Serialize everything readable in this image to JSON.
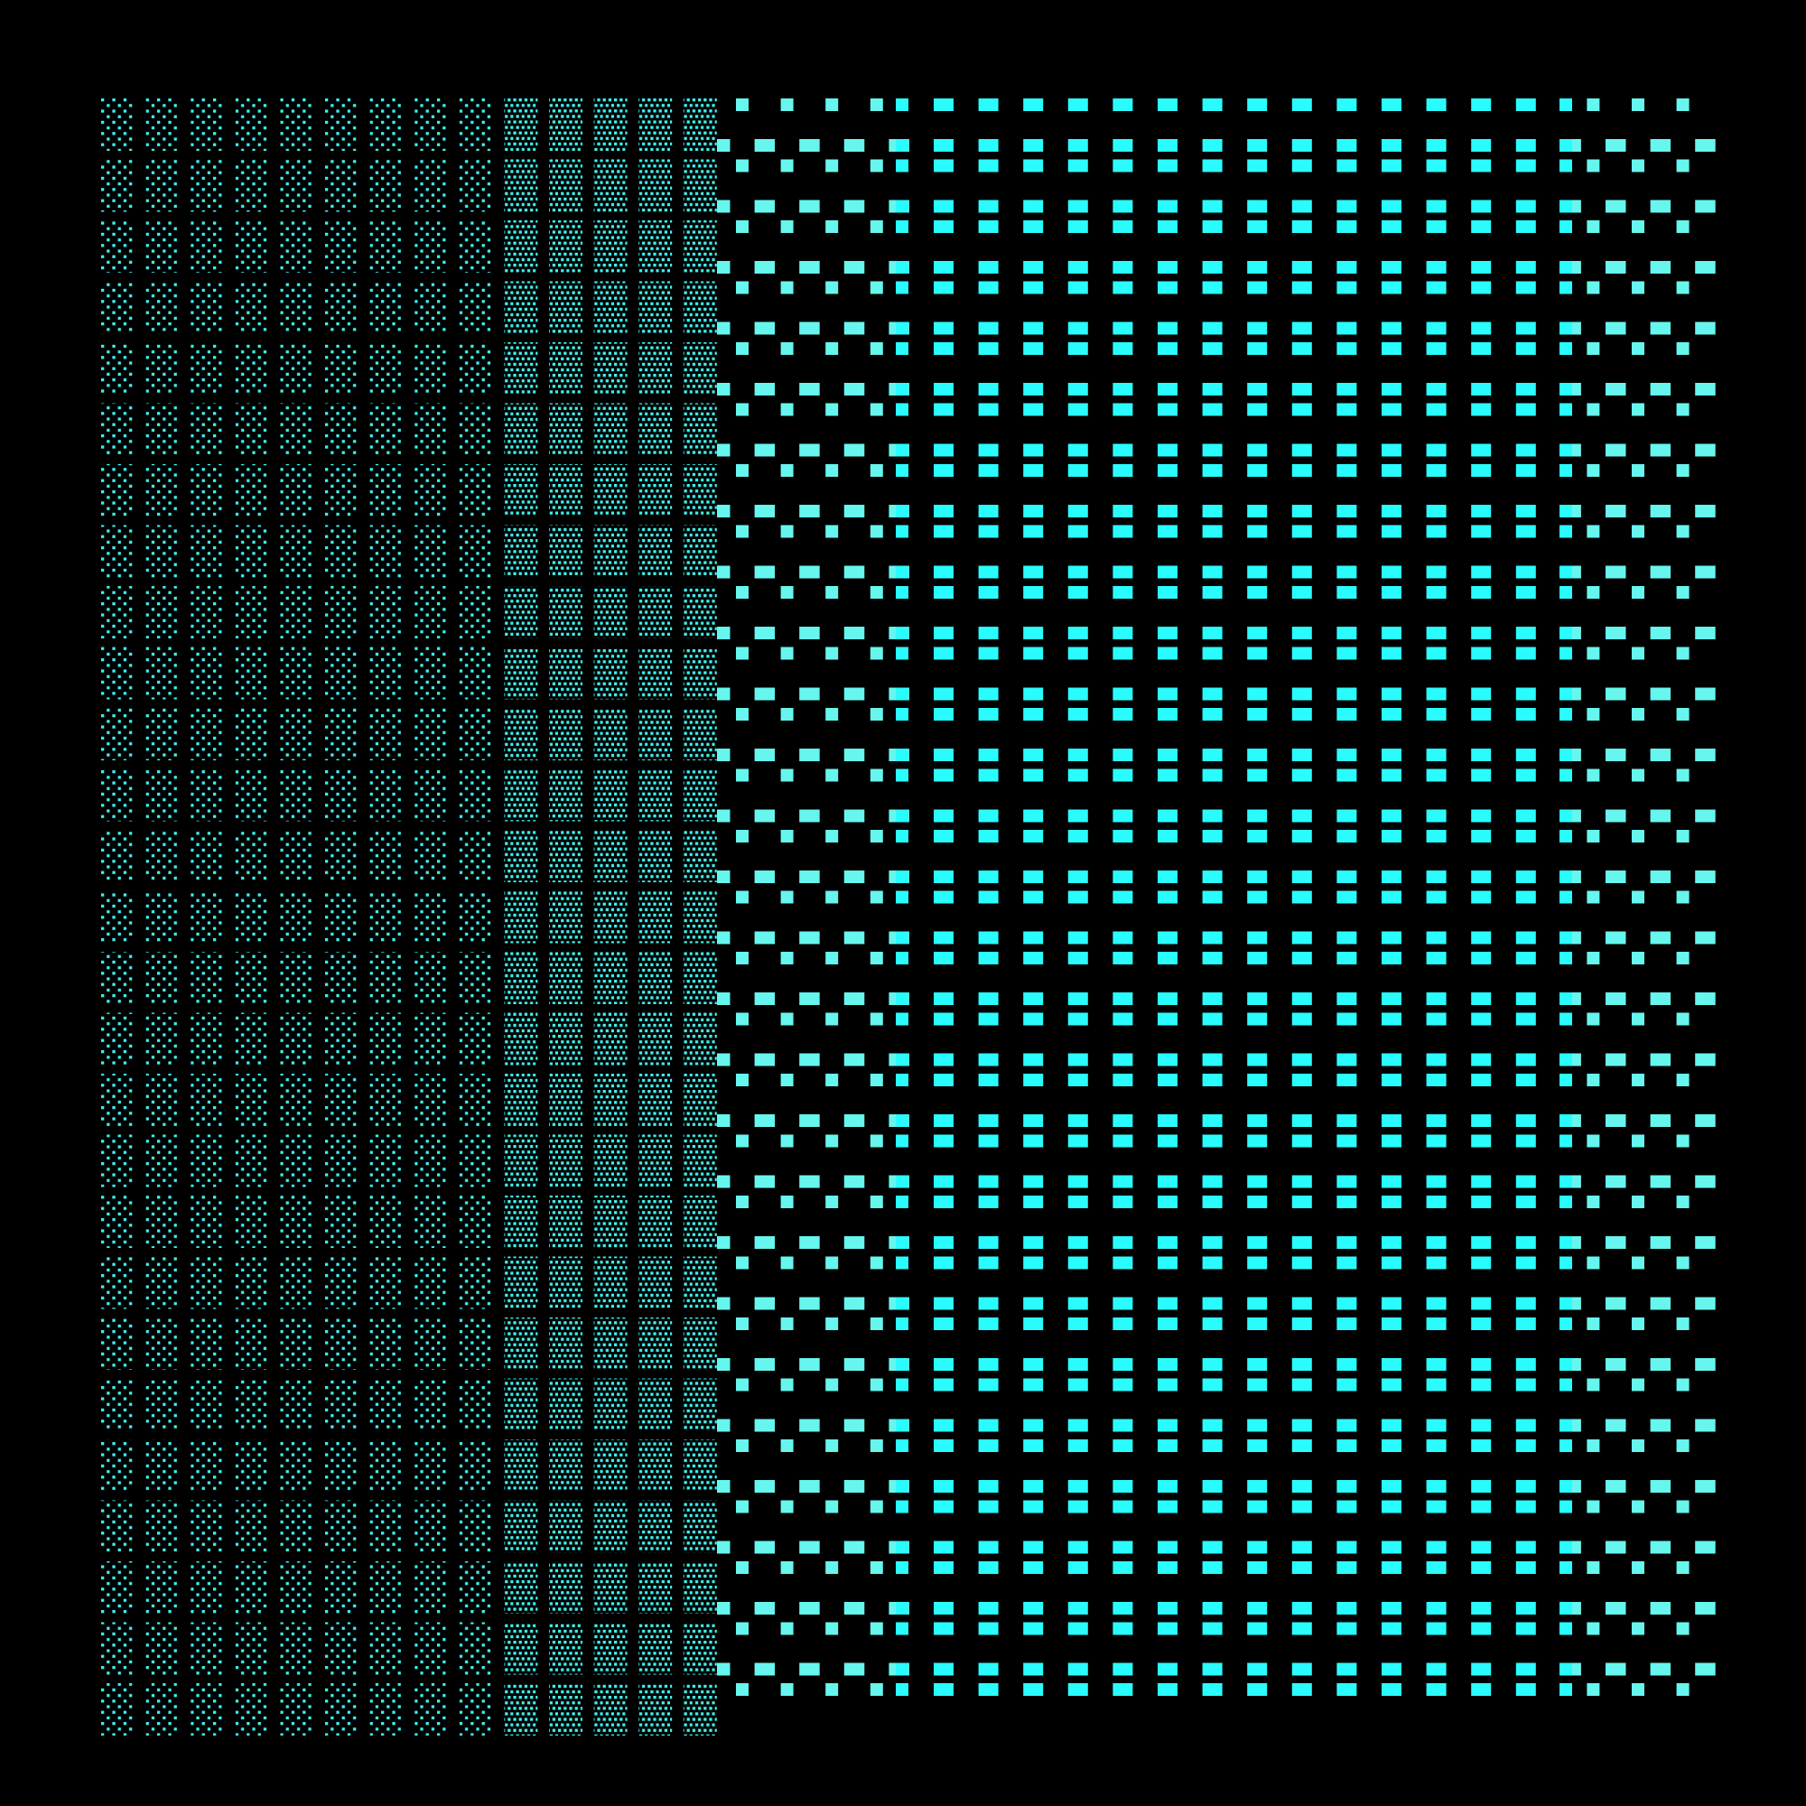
{
  "pattern": {
    "background": "#000000",
    "dot_color": "#3ff2ec",
    "light_color": "#66f6ee",
    "bright_color": "#2afcfd",
    "sparse_dot_columns": 9,
    "dense_dot_columns": 5,
    "bands": 27
  }
}
